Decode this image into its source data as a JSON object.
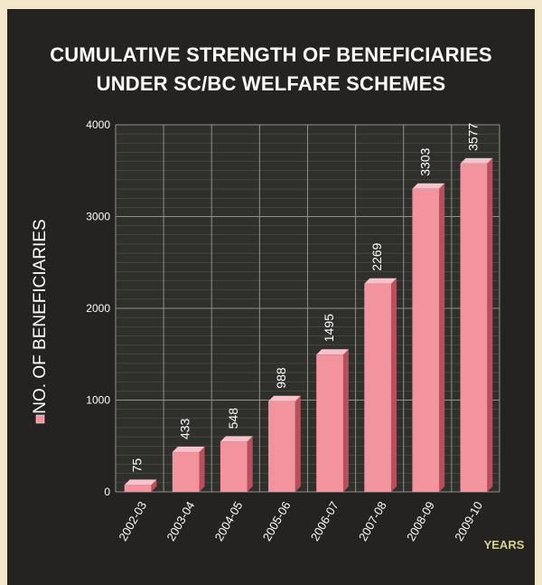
{
  "chart_data": {
    "type": "bar",
    "title_lines": [
      "CUMULATIVE STRENGTH OF  BENEFICIARIES",
      "UNDER SC/BC WELFARE SCHEMES"
    ],
    "xlabel": "YEARS",
    "ylabel": "NO. OF BENEFICIARIES",
    "categories": [
      "2002-03",
      "2003-04",
      "2004-05",
      "2005-06",
      "2006-07",
      "2007-08",
      "2008-09",
      "2009-10"
    ],
    "values": [
      75,
      433,
      548,
      988,
      1495,
      2269,
      3303,
      3577
    ],
    "value_labels": [
      "75",
      "433",
      "548",
      "988",
      "1495",
      "2269",
      "3303",
      "3577"
    ],
    "yticks": [
      0,
      1000,
      2000,
      3000,
      4000
    ],
    "ytick_labels": [
      "0",
      "1000",
      "2000",
      "3000",
      "4000"
    ],
    "ylim": [
      0,
      4000
    ],
    "grid": true,
    "colors": {
      "background": "#242321",
      "border": "#f4e8cc",
      "plot_bg": "#2f2f2c",
      "grid": "#8f9088",
      "bar": "#f2939e",
      "bar_side": "#b8505c",
      "bar_top": "#f9c2ca",
      "text": "#ffffff",
      "xlabel": "#d8d090"
    }
  }
}
